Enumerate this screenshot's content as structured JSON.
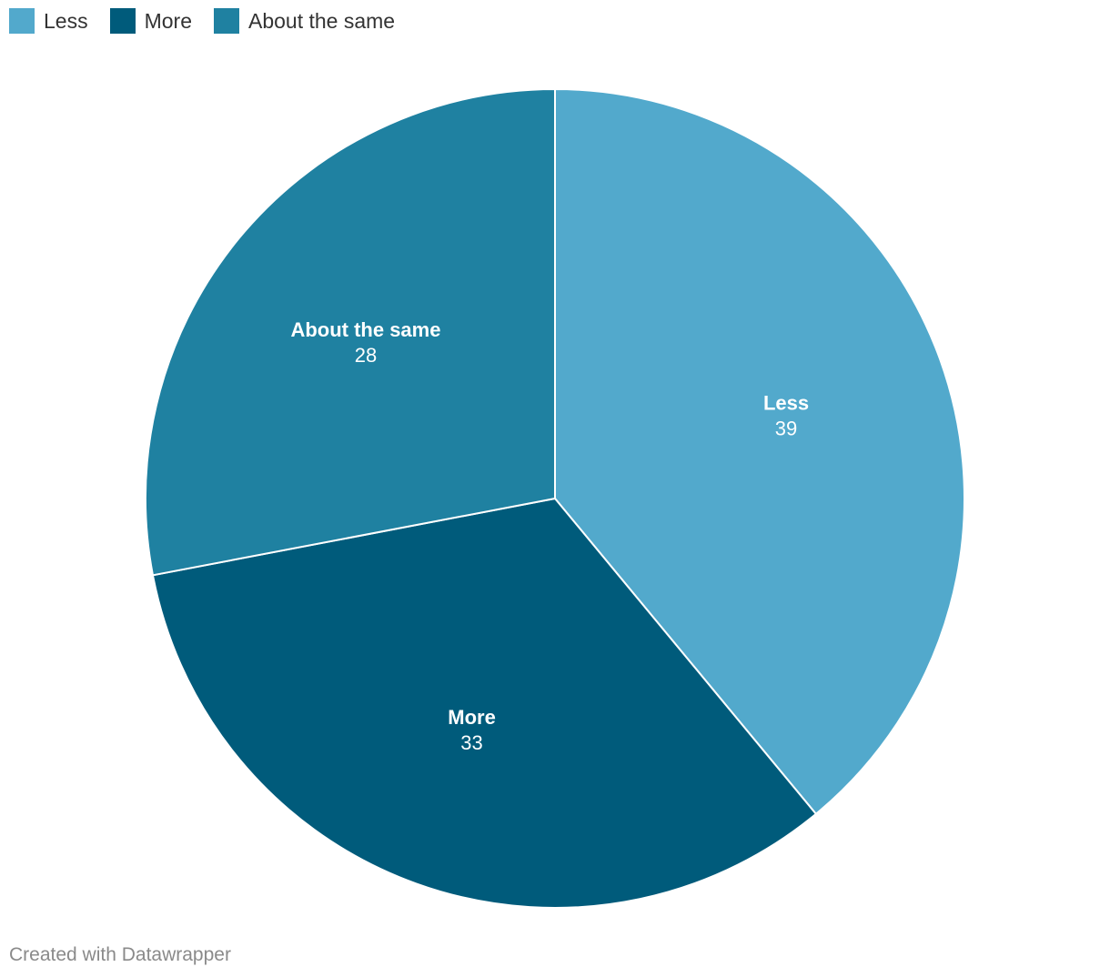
{
  "legend": [
    {
      "label": "Less",
      "color": "#52a9cc"
    },
    {
      "label": "More",
      "color": "#005b7b"
    },
    {
      "label": "About the same",
      "color": "#1f81a1"
    }
  ],
  "chart_data": {
    "type": "pie",
    "categories": [
      "Less",
      "More",
      "About the same"
    ],
    "values": [
      39,
      33,
      28
    ],
    "colors": [
      "#52a9cc",
      "#005b7b",
      "#1f81a1"
    ],
    "legend_position": "top-left",
    "start_angle_deg": 0,
    "direction": "clockwise"
  },
  "footer": {
    "credit": "Created with Datawrapper"
  }
}
